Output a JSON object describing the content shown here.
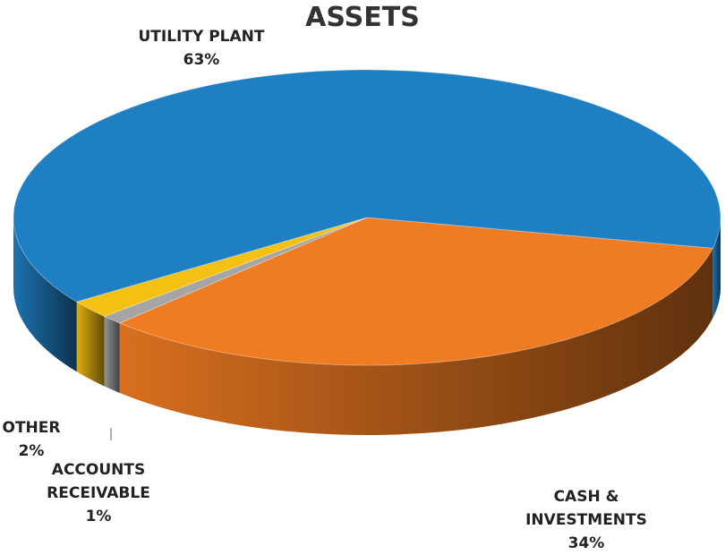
{
  "chart_data": {
    "type": "pie",
    "title": "ASSETS",
    "categories": [
      "CASH & INVESTMENTS",
      "ACCOUNTS RECEIVABLE",
      "OTHER",
      "UTILITY PLANT"
    ],
    "values": [
      34,
      1,
      2,
      63
    ],
    "value_labels": [
      "34%",
      "1%",
      "2%",
      "63%"
    ],
    "colors": [
      "#ef7b22",
      "#a5a5a5",
      "#f4c012",
      "#1f7fc3"
    ]
  }
}
